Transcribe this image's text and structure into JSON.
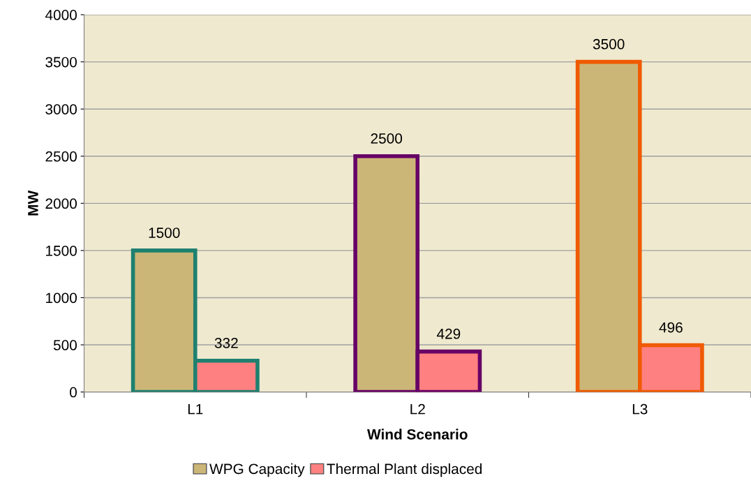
{
  "chart_data": {
    "type": "bar",
    "xlabel": "Wind Scenario",
    "ylabel": "MW",
    "categories": [
      "L1",
      "L2",
      "L3"
    ],
    "series": [
      {
        "name": "WPG Capacity",
        "color": "#cbb677",
        "values": [
          1500,
          2500,
          3500
        ]
      },
      {
        "name": "Thermal Plant displaced",
        "color": "#ff8080",
        "values": [
          332,
          429,
          496
        ]
      }
    ],
    "ylim": [
      0,
      4000
    ],
    "yticks": [
      0,
      500,
      1000,
      1500,
      2000,
      2500,
      3000,
      3500,
      4000
    ],
    "grid": "y",
    "legend": "bottom",
    "data_labels": true
  }
}
